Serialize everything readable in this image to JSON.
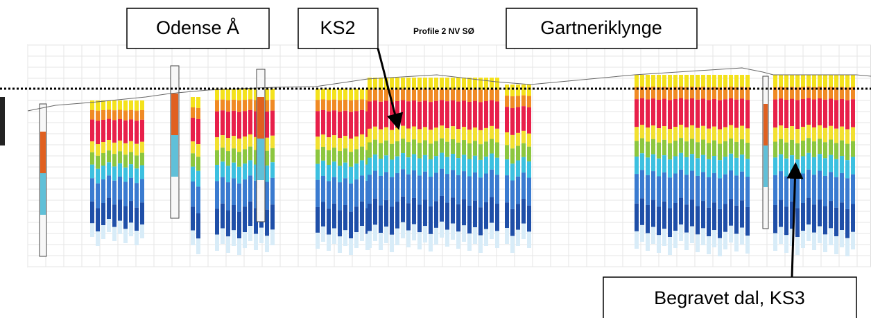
{
  "title": "Profile 2 NV SØ",
  "annotations": [
    "Odense Å",
    "KS2",
    "Gartneriklynge",
    "Begravet dal, KS3"
  ]
}
